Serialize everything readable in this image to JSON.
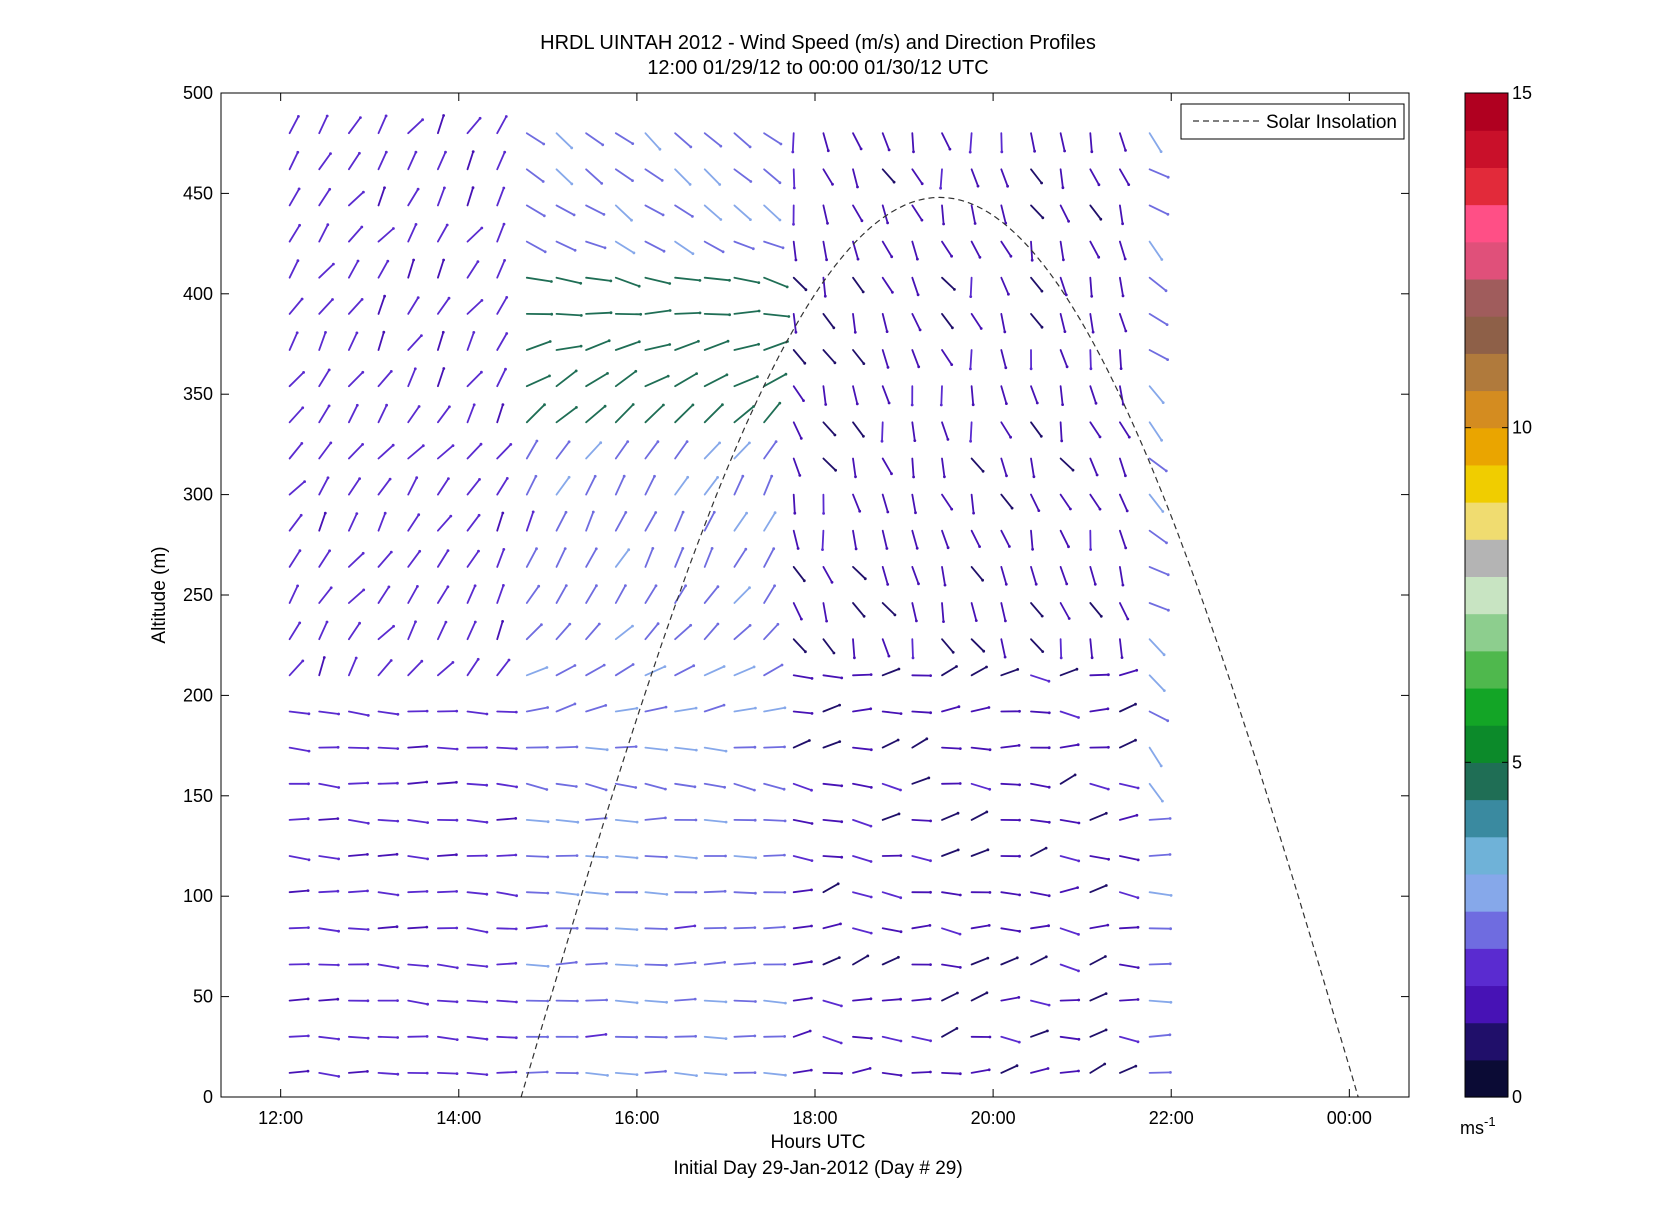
{
  "chart_data": {
    "type": "quiver",
    "title_line1": "HRDL UINTAH 2012 - Wind Speed (m/s) and Direction Profiles",
    "title_line2": "12:00 01/29/12 to 00:00 01/30/12  UTC",
    "xlabel": "Hours UTC",
    "xlabel_sub": "Initial Day 29-Jan-2012 (Day # 29)",
    "ylabel": "Altitude (m)",
    "xlim_hours": [
      11.33,
      24.67
    ],
    "ylim": [
      0,
      500
    ],
    "xticks": [
      {
        "value": 12,
        "label": "12:00"
      },
      {
        "value": 14,
        "label": "14:00"
      },
      {
        "value": 16,
        "label": "16:00"
      },
      {
        "value": 18,
        "label": "18:00"
      },
      {
        "value": 20,
        "label": "20:00"
      },
      {
        "value": 22,
        "label": "22:00"
      },
      {
        "value": 24,
        "label": "00:00"
      }
    ],
    "yticks": [
      0,
      50,
      100,
      150,
      200,
      250,
      300,
      350,
      400,
      450,
      500
    ],
    "legend": {
      "entries": [
        "Solar Insolation"
      ],
      "placement": "top-right",
      "style": "dashed"
    },
    "colorbar": {
      "min": 0,
      "max": 15,
      "ticks": [
        0,
        5,
        10,
        15
      ],
      "unit": "ms",
      "unit_sup": "-1",
      "colors": [
        "#0b0b35",
        "#200f6a",
        "#4712b5",
        "#5a2bd0",
        "#6f6ce0",
        "#86a8ea",
        "#6fb2d8",
        "#3a8aa0",
        "#1f6e55",
        "#0c8a2a",
        "#13a526",
        "#4fb84d",
        "#8dce8e",
        "#c8e4c2",
        "#b4b4b4",
        "#f0dc70",
        "#f0cd00",
        "#eaa500",
        "#d48c20",
        "#b07a3c",
        "#8e6048",
        "#a05c5c",
        "#e0507a",
        "#ff4f86",
        "#e22a3a",
        "#c9102a",
        "#b00020"
      ]
    },
    "solar_insolation_curve": {
      "start_hour": 14.7,
      "end_hour": 24.1,
      "peak_hour": 19.4,
      "peak_altitude": 448
    },
    "wind_grid": {
      "time_start_hour": 12.1,
      "time_step_hours": 0.333,
      "time_count": 30,
      "altitude_start": 12,
      "altitude_step": 18,
      "altitude_count": 27
    }
  }
}
